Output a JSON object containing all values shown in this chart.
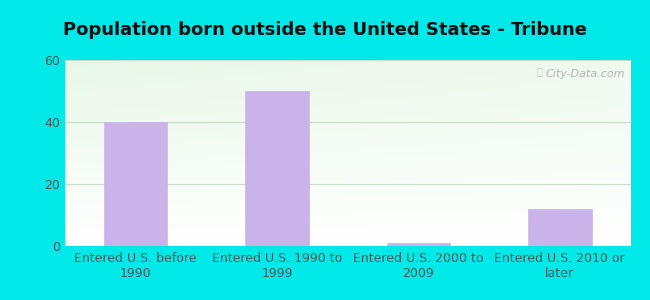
{
  "title": "Population born outside the United States - Tribune",
  "categories": [
    "Entered U.S. before\n1990",
    "Entered U.S. 1990 to\n1999",
    "Entered U.S. 2000 to\n2009",
    "Entered U.S. 2010 or\nlater"
  ],
  "values": [
    40,
    50,
    1,
    12
  ],
  "bar_color": "#c9b3e8",
  "bar_edgecolor": "#c9b3e8",
  "ylim": [
    0,
    60
  ],
  "yticks": [
    0,
    20,
    40,
    60
  ],
  "background_outer": "#00e8e8",
  "grid_color": "#d8e8d0",
  "title_fontsize": 13,
  "tick_fontsize": 9,
  "watermark": "City-Data.com",
  "title_color": "#111111",
  "tick_color": "#555555",
  "bar_width": 0.45
}
